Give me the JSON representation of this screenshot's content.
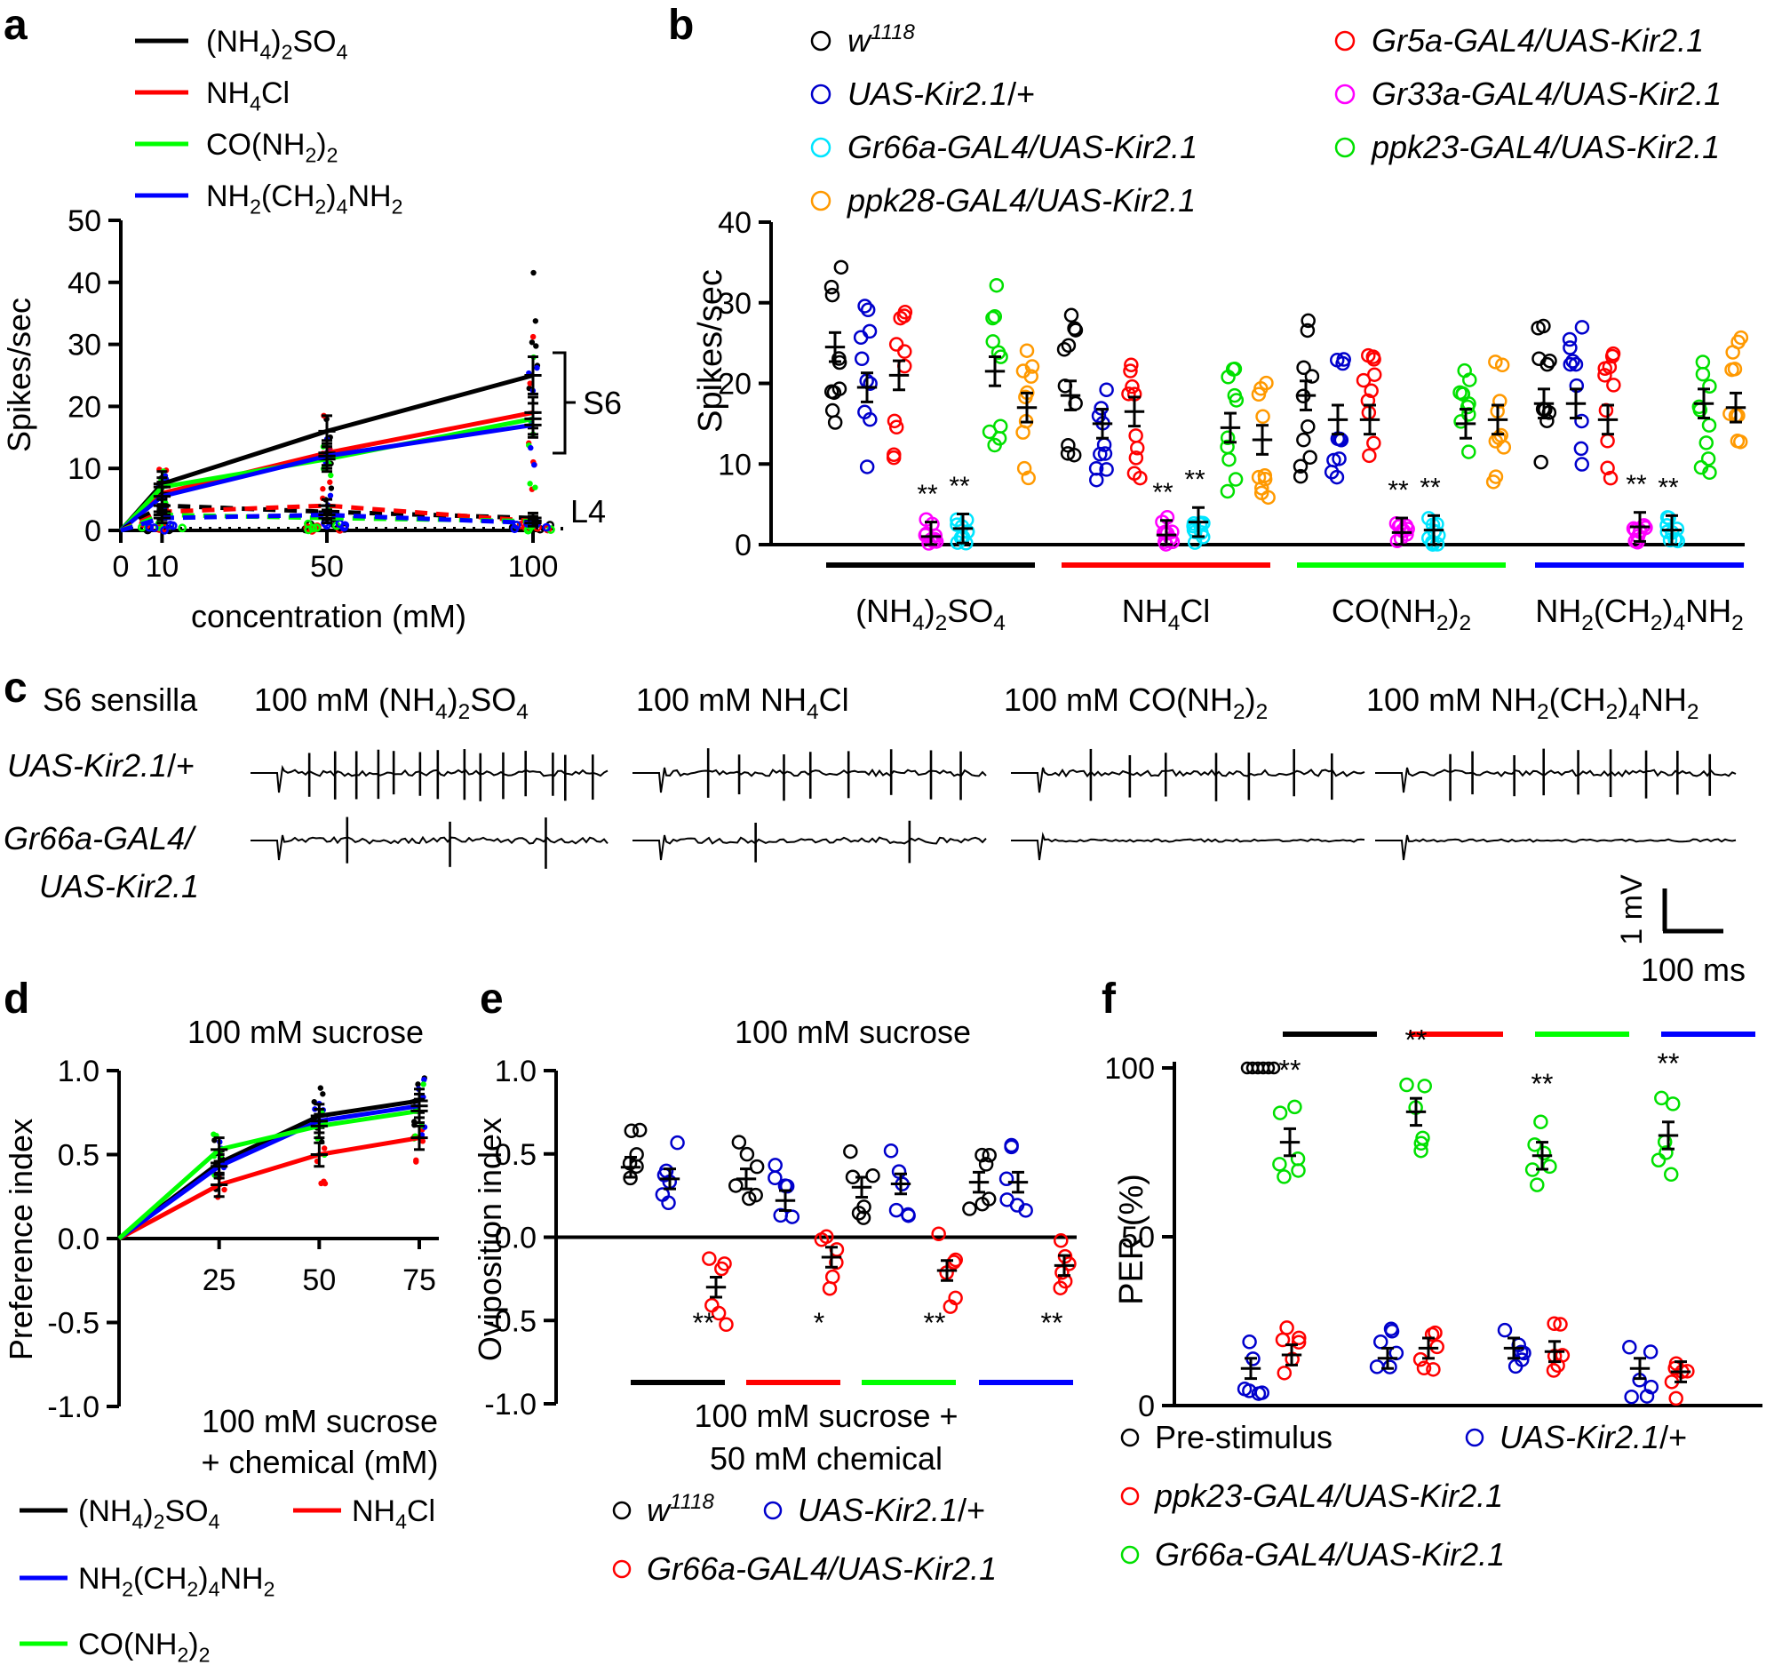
{
  "colors": {
    "black": "#000000",
    "red": "#ff0000",
    "green": "#00ff00",
    "blue": "#0000ff",
    "strain_black": "#000000",
    "strain_blue": "#0000cc",
    "strain_cyan": "#00e5ff",
    "strain_magenta": "#ff00ff",
    "strain_red": "#ff0000",
    "strain_green": "#00e000",
    "strain_orange": "#ff9900"
  },
  "panels": {
    "a": "a",
    "b": "b",
    "c": "c",
    "d": "d",
    "e": "e",
    "f": "f"
  },
  "chart_data": [
    {
      "panel": "a",
      "type": "line",
      "xlabel": "concentration (mM)",
      "ylabel": "Spikes/sec",
      "x": [
        0,
        10,
        50,
        100
      ],
      "xticks": [
        "0",
        "10",
        "50",
        "100"
      ],
      "ylim": [
        0,
        50
      ],
      "yticks": [
        "0",
        "10",
        "20",
        "30",
        "40",
        "50"
      ],
      "legend": [
        {
          "pre": "(NH",
          "sub1": "4",
          "mid": ")",
          "sub2": "2",
          "post": "SO",
          "sub3": "4",
          "color": "black"
        },
        {
          "pre": "NH",
          "sub1": "4",
          "mid": "Cl",
          "sub2": "",
          "post": "",
          "sub3": "",
          "color": "red"
        },
        {
          "pre": "CO(NH",
          "sub1": "2",
          "mid": ")",
          "sub2": "2",
          "post": "",
          "sub3": "",
          "color": "green"
        },
        {
          "pre": "NH",
          "sub1": "2",
          "mid": "(CH",
          "sub2": "2",
          "post": ")",
          "sub3": "4",
          "post2": "NH",
          "sub4": "2",
          "color": "blue"
        }
      ],
      "annotations": {
        "s6": "S6",
        "l4": "L4"
      },
      "series": [
        {
          "name": "(NH4)2SO4 S6",
          "color": "black",
          "dash": false,
          "values": [
            0,
            7.5,
            16,
            25
          ],
          "sem": [
            0,
            2,
            2.5,
            3
          ]
        },
        {
          "name": "NH4Cl S6",
          "color": "red",
          "dash": false,
          "values": [
            0,
            6,
            12.5,
            19
          ],
          "sem": [
            0,
            1.8,
            2,
            2.5
          ]
        },
        {
          "name": "CO(NH2)2 S6",
          "color": "green",
          "dash": false,
          "values": [
            0,
            7,
            11.5,
            18
          ],
          "sem": [
            0,
            1.5,
            2,
            2.5
          ]
        },
        {
          "name": "NH2(CH2)4NH2 S6",
          "color": "blue",
          "dash": false,
          "values": [
            0,
            5.5,
            12,
            17
          ],
          "sem": [
            0,
            1.5,
            2,
            2
          ]
        },
        {
          "name": "(NH4)2SO4 L4",
          "color": "black",
          "dash": true,
          "values": [
            0,
            4,
            3,
            2
          ],
          "sem": [
            0,
            1,
            1,
            0.8
          ]
        },
        {
          "name": "NH4Cl L4",
          "color": "red",
          "dash": true,
          "values": [
            0,
            3,
            4,
            1.5
          ],
          "sem": [
            0,
            1,
            1,
            0.8
          ]
        },
        {
          "name": "CO(NH2)2 L4",
          "color": "green",
          "dash": true,
          "values": [
            0,
            2.5,
            2,
            1.5
          ],
          "sem": [
            0,
            0.8,
            0.8,
            0.5
          ]
        },
        {
          "name": "NH2(CH2)4NH2 L4",
          "color": "blue",
          "dash": true,
          "values": [
            0,
            2,
            2.5,
            1.2
          ],
          "sem": [
            0,
            0.8,
            0.8,
            0.5
          ]
        }
      ]
    },
    {
      "panel": "b",
      "type": "scatter",
      "ylabel": "Spikes/sec",
      "ylim": [
        0,
        40
      ],
      "yticks": [
        "0",
        "10",
        "20",
        "30",
        "40"
      ],
      "groups": [
        "(NH4)2SO4",
        "NH4Cl",
        "CO(NH2)2",
        "NH2(CH2)4NH2"
      ],
      "group_labels": [
        {
          "a": "(NH",
          "s1": "4",
          "b": ")",
          "s2": "2",
          "c": "SO",
          "s3": "4",
          "d": ""
        },
        {
          "a": "NH",
          "s1": "4",
          "b": "Cl",
          "s2": "",
          "c": "",
          "s3": "",
          "d": ""
        },
        {
          "a": "CO(NH",
          "s1": "2",
          "b": ")",
          "s2": "2",
          "c": "",
          "s3": "",
          "d": ""
        },
        {
          "a": "NH",
          "s1": "2",
          "b": "(CH",
          "s2": "2",
          "c": ")",
          "s3": "4",
          "d": "NH",
          "s4": "2"
        }
      ],
      "group_colors": [
        "black",
        "red",
        "green",
        "blue"
      ],
      "strains": [
        {
          "name": "w",
          "sup": "1118",
          "label_rest": "",
          "color": "strain_black"
        },
        {
          "name": "UAS-Kir2.1",
          "sup": "",
          "label_rest": "/+",
          "color": "strain_blue"
        },
        {
          "name": "Gr66a-GAL4",
          "sup": "",
          "label_rest": "/UAS-Kir2.1",
          "color": "strain_cyan"
        },
        {
          "name": "ppk28-GAL4",
          "sup": "",
          "label_rest": "/UAS-Kir2.1",
          "color": "strain_orange"
        },
        {
          "name": "Gr5a-GAL4",
          "sup": "",
          "label_rest": "/UAS-Kir2.1",
          "color": "strain_red"
        },
        {
          "name": "Gr33a-GAL4",
          "sup": "",
          "label_rest": "/UAS-Kir2.1",
          "color": "strain_magenta"
        },
        {
          "name": "ppk23-GAL4",
          "sup": "",
          "label_rest": "/UAS-Kir2.1",
          "color": "strain_green"
        }
      ],
      "plot_order": [
        "strain_black",
        "strain_blue",
        "strain_red",
        "strain_magenta",
        "strain_cyan",
        "strain_green",
        "strain_orange"
      ],
      "means": [
        [
          24.5,
          19.5,
          21,
          1,
          2,
          21.5,
          17
        ],
        [
          18.5,
          15,
          16.5,
          1.2,
          2.8,
          14.5,
          13
        ],
        [
          18.5,
          15.5,
          15.5,
          1.5,
          1.8,
          15,
          15.5
        ],
        [
          17.5,
          17.5,
          15.5,
          2.2,
          1.8,
          17.5,
          17
        ]
      ],
      "significance": "**"
    },
    {
      "panel": "c",
      "type": "table",
      "row_header": "S6 sensilla",
      "rows": [
        {
          "l1": "UAS-Kir2.1",
          "l1b": "/+",
          "l2": ""
        },
        {
          "l1": "Gr66a-GAL4",
          "l1b": "/",
          "l2": "UAS-Kir2.1"
        }
      ],
      "columns": [
        {
          "pre": "100 mM (NH",
          "s1": "4",
          "m": ")",
          "s2": "2",
          "post": "SO",
          "s3": "4",
          "e": ""
        },
        {
          "pre": "100 mM NH",
          "s1": "4",
          "m": "Cl",
          "s2": "",
          "post": "",
          "s3": "",
          "e": ""
        },
        {
          "pre": "100 mM CO(NH",
          "s1": "2",
          "m": ")",
          "s2": "2",
          "post": "",
          "s3": "",
          "e": ""
        },
        {
          "pre": "100 mM NH",
          "s1": "2",
          "m": "(CH",
          "s2": "2",
          "post": ")",
          "s3": "4",
          "e": "NH",
          "s4": "2"
        }
      ],
      "spike_counts": [
        [
          14,
          8,
          7,
          9
        ],
        [
          3,
          2,
          0,
          0
        ]
      ],
      "scale_bar": {
        "v": "1 mV",
        "t": "100 ms"
      }
    },
    {
      "panel": "d",
      "type": "line",
      "title": "100 mM sucrose",
      "ylabel": "Preference index",
      "xlabel_line1": "100 mM sucrose",
      "xlabel_line2": "+ chemical (mM)",
      "x": [
        0,
        25,
        50,
        75
      ],
      "xticks": [
        "25",
        "50",
        "75"
      ],
      "ylim": [
        -1,
        1
      ],
      "yticks": [
        "1.0",
        "0.5",
        "0.0",
        "-0.5",
        "-1.0"
      ],
      "legend": [
        {
          "pre": "(NH",
          "s1": "4",
          "m": ")",
          "s2": "2",
          "post": "SO",
          "s3": "4",
          "color": "black"
        },
        {
          "pre": "NH",
          "s1": "4",
          "m": "Cl",
          "s2": "",
          "post": "",
          "s3": "",
          "color": "red"
        },
        {
          "pre": "NH",
          "s1": "2",
          "m": "(CH",
          "s2": "2",
          "post": ")",
          "s3": "4",
          "e": "NH",
          "s4": "2",
          "color": "blue"
        },
        {
          "pre": "CO(NH",
          "s1": "2",
          "m": ")",
          "s2": "2",
          "post": "",
          "s3": "",
          "color": "green"
        }
      ],
      "series": [
        {
          "name": "(NH4)2SO4",
          "color": "black",
          "values": [
            0,
            0.45,
            0.73,
            0.82
          ]
        },
        {
          "name": "NH4Cl",
          "color": "red",
          "values": [
            0,
            0.32,
            0.5,
            0.6
          ]
        },
        {
          "name": "NH2(CH2)4NH2",
          "color": "blue",
          "values": [
            0,
            0.43,
            0.7,
            0.79
          ]
        },
        {
          "name": "CO(NH2)2",
          "color": "green",
          "values": [
            0,
            0.53,
            0.67,
            0.76
          ]
        }
      ]
    },
    {
      "panel": "e",
      "type": "scatter",
      "title": "100 mM sucrose",
      "ylabel": "Oviposition index",
      "xlabel_line1": "100 mM sucrose +",
      "xlabel_line2": "50 mM chemical",
      "ylim": [
        -1,
        1
      ],
      "yticks": [
        "1.0",
        "0.5",
        "0.0",
        "-0.5",
        "-1.0"
      ],
      "group_colors": [
        "black",
        "red",
        "green",
        "blue"
      ],
      "legend": [
        {
          "name": "w",
          "sup": "1118",
          "rest": "",
          "color": "strain_black"
        },
        {
          "name": "UAS-Kir2.1",
          "sup": "",
          "rest": "/+",
          "color": "strain_blue"
        },
        {
          "name": "Gr66a-GAL4",
          "sup": "",
          "rest": "/UAS-Kir2.1",
          "color": "strain_red"
        }
      ],
      "means": [
        [
          0.42,
          0.35,
          -0.3
        ],
        [
          0.35,
          0.22,
          -0.12
        ],
        [
          0.3,
          0.32,
          -0.2
        ],
        [
          0.33,
          0.33,
          -0.17
        ]
      ],
      "significance": [
        "**",
        "*",
        "**",
        "**"
      ]
    },
    {
      "panel": "f",
      "type": "scatter",
      "ylabel": "PER (%)",
      "ylim": [
        0,
        100
      ],
      "yticks": [
        "0",
        "50",
        "100"
      ],
      "group_colors": [
        "black",
        "red",
        "green",
        "blue"
      ],
      "legend": [
        {
          "name": "Pre-stimulus",
          "rest": "",
          "italic": false,
          "color": "strain_black"
        },
        {
          "name": "UAS-Kir2.1",
          "rest": "/+",
          "italic": true,
          "color": "strain_blue"
        },
        {
          "name": "ppk23-GAL4",
          "rest": "/UAS-Kir2.1",
          "italic": true,
          "color": "strain_red"
        },
        {
          "name": "Gr66a-GAL4",
          "rest": "/UAS-Kir2.1",
          "italic": true,
          "color": "strain_green"
        }
      ],
      "pre_stimulus": 100,
      "gr66a_means": [
        78,
        87,
        74,
        80
      ],
      "control_means": [
        [
          11,
          15
        ],
        [
          14,
          17
        ],
        [
          17,
          16
        ],
        [
          11,
          10
        ]
      ],
      "significance": "**"
    }
  ]
}
